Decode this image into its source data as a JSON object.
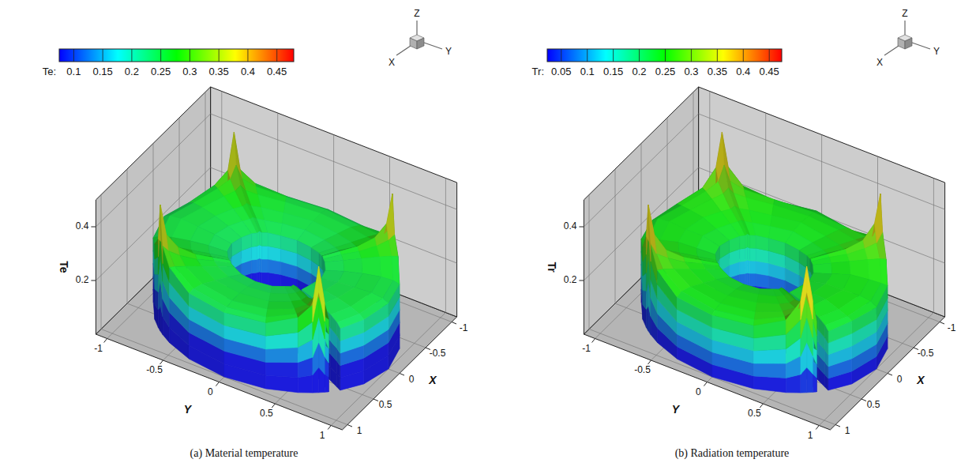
{
  "chart_data": [
    {
      "type": "surface3d",
      "title": "(a) Material temperature",
      "x_label": "X",
      "y_label": "Y",
      "z_label": "Te",
      "xlim": [
        -1.1,
        1.1
      ],
      "xticks": [
        -1,
        -0.5,
        0,
        0.5,
        1
      ],
      "ylim": [
        -1.1,
        1.1
      ],
      "yticks": [
        -1,
        -0.5,
        0,
        0.5,
        1
      ],
      "zlim": [
        0,
        0.5
      ],
      "zticks": [
        0.2,
        0.4
      ],
      "grid": true,
      "triad": [
        "Z",
        "X",
        "Y"
      ],
      "colorbar": {
        "label": "Te:",
        "range": [
          0.075,
          0.479
        ],
        "ticks": [
          0.1,
          0.15,
          0.2,
          0.25,
          0.3,
          0.35,
          0.4,
          0.45
        ]
      },
      "radii": [
        0.4,
        0.55,
        0.7,
        0.85,
        0.95,
        1.0
      ],
      "angles": [
        0,
        20,
        35,
        42,
        45,
        48,
        50,
        53,
        56,
        70,
        90,
        110,
        125,
        132,
        135,
        138,
        145,
        160,
        180,
        200,
        215,
        222,
        225,
        228,
        235,
        250,
        270,
        290,
        305,
        312,
        315,
        318,
        325,
        340
      ],
      "values": [
        [
          0.24,
          0.24,
          0.245,
          0.245,
          0.25,
          0.245,
          0.24,
          null,
          0.23,
          0.24,
          0.24,
          0.24,
          0.245,
          0.245,
          0.25,
          0.245,
          0.245,
          0.24,
          0.24,
          0.24,
          0.245,
          0.245,
          0.25,
          0.245,
          0.245,
          0.24,
          0.24,
          0.24,
          0.245,
          0.245,
          0.25,
          0.245,
          0.245,
          0.24
        ],
        [
          0.25,
          0.25,
          0.255,
          0.26,
          0.265,
          0.26,
          0.25,
          null,
          0.24,
          0.25,
          0.25,
          0.25,
          0.255,
          0.26,
          0.265,
          0.26,
          0.255,
          0.25,
          0.25,
          0.25,
          0.255,
          0.26,
          0.265,
          0.26,
          0.255,
          0.25,
          0.25,
          0.25,
          0.255,
          0.26,
          0.265,
          0.26,
          0.255,
          0.25
        ],
        [
          0.255,
          0.255,
          0.265,
          0.27,
          0.28,
          0.27,
          0.255,
          null,
          0.245,
          0.255,
          0.255,
          0.255,
          0.265,
          0.27,
          0.28,
          0.27,
          0.265,
          0.255,
          0.255,
          0.255,
          0.265,
          0.27,
          0.28,
          0.27,
          0.265,
          0.255,
          0.255,
          0.255,
          0.265,
          0.27,
          0.28,
          0.27,
          0.265,
          0.255
        ],
        [
          0.255,
          0.26,
          0.275,
          0.29,
          0.31,
          0.29,
          0.26,
          null,
          0.245,
          0.255,
          0.26,
          0.255,
          0.275,
          0.29,
          0.31,
          0.29,
          0.275,
          0.26,
          0.255,
          0.26,
          0.275,
          0.29,
          0.31,
          0.29,
          0.275,
          0.255,
          0.26,
          0.255,
          0.275,
          0.29,
          0.31,
          0.29,
          0.275,
          0.26
        ],
        [
          0.25,
          0.255,
          0.28,
          0.31,
          0.36,
          0.31,
          0.265,
          null,
          0.24,
          0.25,
          0.255,
          0.25,
          0.28,
          0.31,
          0.36,
          0.31,
          0.28,
          0.255,
          0.25,
          0.255,
          0.28,
          0.31,
          0.36,
          0.31,
          0.28,
          0.25,
          0.255,
          0.25,
          0.28,
          0.31,
          0.36,
          0.31,
          0.28,
          0.255
        ],
        [
          0.24,
          0.245,
          0.28,
          0.33,
          0.47,
          0.33,
          0.27,
          null,
          0.23,
          0.24,
          0.245,
          0.24,
          0.28,
          0.33,
          0.47,
          0.33,
          0.28,
          0.245,
          0.24,
          0.245,
          0.28,
          0.33,
          0.47,
          0.33,
          0.28,
          0.24,
          0.245,
          0.24,
          0.28,
          0.33,
          0.47,
          0.33,
          0.28,
          0.245
        ]
      ]
    },
    {
      "type": "surface3d",
      "title": "(b) Radiation temperature",
      "x_label": "X",
      "y_label": "Y",
      "z_label": "Tr",
      "xlim": [
        -1.1,
        1.1
      ],
      "xticks": [
        -1,
        -0.5,
        0,
        0.5,
        1
      ],
      "ylim": [
        -1.1,
        1.1
      ],
      "yticks": [
        -1,
        -0.5,
        0,
        0.5,
        1
      ],
      "zlim": [
        0,
        0.5
      ],
      "zticks": [
        0.2,
        0.4
      ],
      "grid": true,
      "triad": [
        "Z",
        "X",
        "Y"
      ],
      "colorbar": {
        "label": "Tr:",
        "range": [
          0.023,
          0.474
        ],
        "ticks": [
          0.05,
          0.1,
          0.15,
          0.2,
          0.25,
          0.3,
          0.35,
          0.4,
          0.45
        ]
      },
      "radii": [
        0.4,
        0.55,
        0.7,
        0.85,
        0.95,
        1.0
      ],
      "angles": [
        0,
        20,
        35,
        42,
        45,
        48,
        50,
        53,
        56,
        70,
        90,
        110,
        125,
        132,
        135,
        138,
        145,
        160,
        180,
        200,
        215,
        222,
        225,
        228,
        235,
        250,
        270,
        290,
        305,
        312,
        315,
        318,
        325,
        340
      ],
      "values": [
        [
          0.23,
          0.23,
          0.235,
          0.235,
          0.24,
          0.235,
          0.23,
          null,
          0.22,
          0.23,
          0.23,
          0.23,
          0.235,
          0.235,
          0.24,
          0.235,
          0.235,
          0.23,
          0.23,
          0.23,
          0.235,
          0.235,
          0.24,
          0.235,
          0.235,
          0.23,
          0.23,
          0.23,
          0.235,
          0.235,
          0.24,
          0.235,
          0.235,
          0.23
        ],
        [
          0.24,
          0.245,
          0.245,
          0.25,
          0.255,
          0.25,
          0.24,
          null,
          0.23,
          0.24,
          0.245,
          0.24,
          0.245,
          0.25,
          0.255,
          0.25,
          0.245,
          0.24,
          0.245,
          0.24,
          0.245,
          0.25,
          0.255,
          0.25,
          0.245,
          0.24,
          0.245,
          0.24,
          0.245,
          0.25,
          0.255,
          0.25,
          0.245,
          0.24
        ],
        [
          0.245,
          0.25,
          0.255,
          0.26,
          0.27,
          0.26,
          0.245,
          null,
          0.235,
          0.25,
          0.245,
          0.25,
          0.255,
          0.26,
          0.27,
          0.26,
          0.255,
          0.245,
          0.25,
          0.245,
          0.255,
          0.26,
          0.27,
          0.26,
          0.255,
          0.25,
          0.245,
          0.25,
          0.255,
          0.26,
          0.27,
          0.26,
          0.255,
          0.245
        ],
        [
          0.245,
          0.25,
          0.265,
          0.28,
          0.3,
          0.28,
          0.25,
          null,
          0.235,
          0.245,
          0.25,
          0.245,
          0.265,
          0.28,
          0.3,
          0.28,
          0.265,
          0.25,
          0.245,
          0.25,
          0.265,
          0.28,
          0.3,
          0.28,
          0.265,
          0.245,
          0.25,
          0.245,
          0.265,
          0.28,
          0.3,
          0.28,
          0.265,
          0.25
        ],
        [
          0.24,
          0.245,
          0.27,
          0.3,
          0.36,
          0.3,
          0.25,
          null,
          0.23,
          0.24,
          0.245,
          0.24,
          0.27,
          0.3,
          0.36,
          0.3,
          0.27,
          0.245,
          0.24,
          0.245,
          0.27,
          0.3,
          0.36,
          0.3,
          0.27,
          0.24,
          0.245,
          0.24,
          0.27,
          0.3,
          0.36,
          0.3,
          0.27,
          0.245
        ],
        [
          0.23,
          0.235,
          0.27,
          0.34,
          0.47,
          0.34,
          0.26,
          null,
          0.22,
          0.235,
          0.23,
          0.235,
          0.27,
          0.34,
          0.47,
          0.34,
          0.27,
          0.23,
          0.235,
          0.23,
          0.27,
          0.34,
          0.47,
          0.34,
          0.27,
          0.235,
          0.23,
          0.235,
          0.27,
          0.34,
          0.47,
          0.34,
          0.27,
          0.23
        ]
      ]
    }
  ]
}
